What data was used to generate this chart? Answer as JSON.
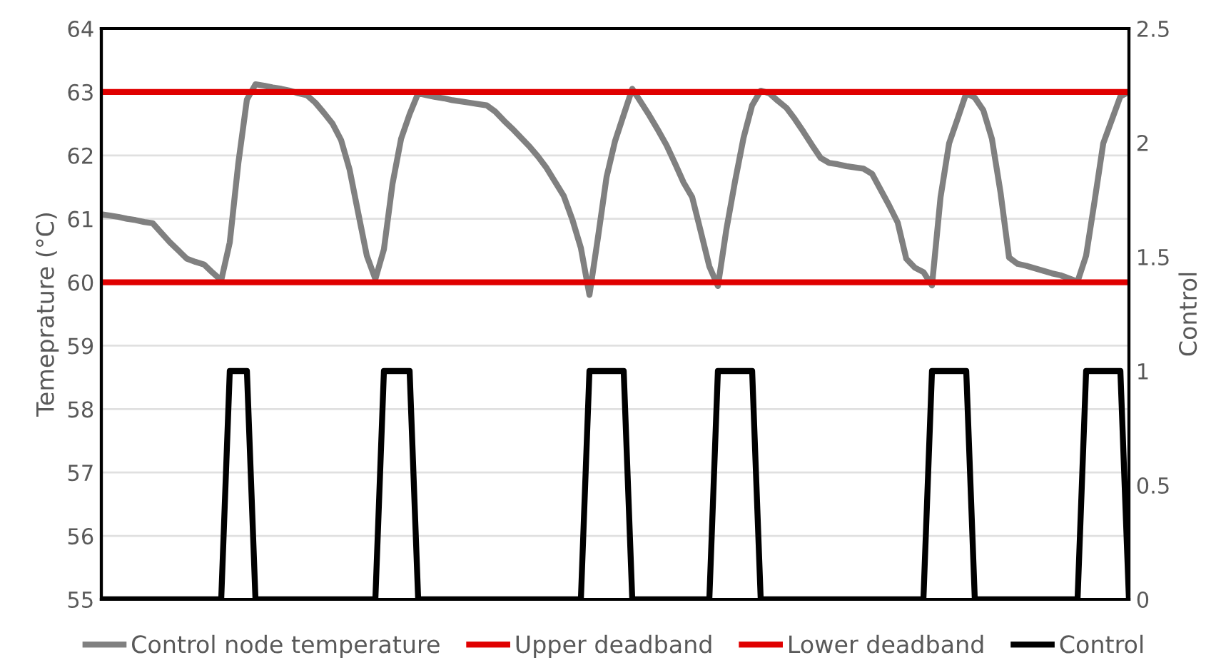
{
  "chart_data": {
    "type": "line",
    "ylabel": "Temeprature (°C)",
    "y2label": "Control",
    "categories": [
      null,
      null,
      null,
      null,
      null,
      null,
      null,
      null,
      null,
      null,
      null,
      null,
      null,
      null,
      null,
      null,
      null,
      null,
      null,
      null,
      null,
      null,
      null,
      null,
      null,
      null,
      null,
      null,
      null,
      null,
      null,
      null,
      null,
      null,
      null,
      null,
      null,
      null,
      null,
      null,
      null,
      null,
      null,
      null,
      null,
      null,
      null,
      null,
      null,
      null,
      null,
      null,
      null,
      null,
      null,
      null,
      null,
      null,
      null,
      null,
      null,
      null,
      null,
      null,
      null,
      null,
      null,
      null,
      null,
      null,
      null,
      null,
      null,
      null,
      null,
      null,
      null,
      null,
      null,
      null,
      null,
      null,
      null,
      null,
      null,
      null,
      null,
      null,
      null,
      null,
      null,
      null,
      null,
      null,
      null,
      null,
      null,
      null,
      null,
      null,
      null,
      null,
      null,
      null,
      null,
      null,
      null,
      null,
      null,
      null,
      null,
      null,
      null,
      null,
      null,
      null,
      null,
      null,
      null,
      null,
      null
    ],
    "series": [
      {
        "name": "Control node temperature",
        "color": "#808080",
        "values": [
          61.07,
          61.05,
          61.03,
          61.0,
          60.98,
          60.95,
          60.93,
          60.78,
          60.63,
          60.5,
          60.37,
          60.32,
          60.28,
          60.15,
          60.03,
          60.63,
          61.88,
          62.88,
          63.12,
          63.1,
          63.07,
          63.05,
          63.02,
          62.98,
          62.95,
          62.83,
          62.67,
          62.5,
          62.24,
          61.77,
          61.09,
          60.42,
          60.05,
          60.52,
          61.55,
          62.26,
          62.65,
          62.98,
          62.95,
          62.92,
          62.9,
          62.87,
          62.85,
          62.83,
          62.81,
          62.79,
          62.69,
          62.55,
          62.42,
          62.28,
          62.14,
          61.98,
          61.8,
          61.58,
          61.36,
          60.99,
          60.54,
          59.8,
          60.71,
          61.66,
          62.23,
          62.64,
          63.05,
          62.84,
          62.63,
          62.4,
          62.16,
          61.87,
          61.57,
          61.34,
          60.8,
          60.25,
          59.94,
          60.84,
          61.59,
          62.28,
          62.79,
          63.02,
          62.98,
          62.86,
          62.75,
          62.57,
          62.37,
          62.16,
          61.96,
          61.88,
          61.86,
          61.83,
          61.81,
          61.79,
          61.71,
          61.46,
          61.21,
          60.94,
          60.37,
          60.23,
          60.16,
          59.95,
          61.34,
          62.19,
          62.58,
          62.98,
          62.91,
          62.71,
          62.26,
          61.42,
          60.39,
          60.29,
          60.26,
          60.22,
          60.18,
          60.14,
          60.11,
          60.06,
          60.01,
          60.42,
          61.29,
          62.19,
          62.56,
          62.93,
          63.0
        ]
      },
      {
        "name": "Upper deadband",
        "color": "#e00000",
        "values": [
          63,
          63,
          63,
          63,
          63,
          63,
          63,
          63,
          63,
          63,
          63,
          63,
          63,
          63,
          63,
          63,
          63,
          63,
          63,
          63,
          63,
          63,
          63,
          63,
          63,
          63,
          63,
          63,
          63,
          63,
          63,
          63,
          63,
          63,
          63,
          63,
          63,
          63,
          63,
          63,
          63,
          63,
          63,
          63,
          63,
          63,
          63,
          63,
          63,
          63,
          63,
          63,
          63,
          63,
          63,
          63,
          63,
          63,
          63,
          63,
          63,
          63,
          63,
          63,
          63,
          63,
          63,
          63,
          63,
          63,
          63,
          63,
          63,
          63,
          63,
          63,
          63,
          63,
          63,
          63,
          63,
          63,
          63,
          63,
          63,
          63,
          63,
          63,
          63,
          63,
          63,
          63,
          63,
          63,
          63,
          63,
          63,
          63,
          63,
          63,
          63,
          63,
          63,
          63,
          63,
          63,
          63,
          63,
          63,
          63,
          63,
          63,
          63,
          63,
          63,
          63,
          63,
          63,
          63,
          63,
          63
        ]
      },
      {
        "name": "Lower deadband",
        "color": "#e00000",
        "values": [
          60,
          60,
          60,
          60,
          60,
          60,
          60,
          60,
          60,
          60,
          60,
          60,
          60,
          60,
          60,
          60,
          60,
          60,
          60,
          60,
          60,
          60,
          60,
          60,
          60,
          60,
          60,
          60,
          60,
          60,
          60,
          60,
          60,
          60,
          60,
          60,
          60,
          60,
          60,
          60,
          60,
          60,
          60,
          60,
          60,
          60,
          60,
          60,
          60,
          60,
          60,
          60,
          60,
          60,
          60,
          60,
          60,
          60,
          60,
          60,
          60,
          60,
          60,
          60,
          60,
          60,
          60,
          60,
          60,
          60,
          60,
          60,
          60,
          60,
          60,
          60,
          60,
          60,
          60,
          60,
          60,
          60,
          60,
          60,
          60,
          60,
          60,
          60,
          60,
          60,
          60,
          60,
          60,
          60,
          60,
          60,
          60,
          60,
          60,
          60,
          60,
          60,
          60,
          60,
          60,
          60,
          60,
          60,
          60,
          60,
          60,
          60,
          60,
          60,
          60,
          60,
          60,
          60,
          60,
          60,
          60
        ]
      },
      {
        "name": "Control",
        "color": "#000000",
        "axis": "y2",
        "values": [
          0,
          0,
          0,
          0,
          0,
          0,
          0,
          0,
          0,
          0,
          0,
          0,
          0,
          0,
          0,
          1,
          1,
          1,
          0,
          0,
          0,
          0,
          0,
          0,
          0,
          0,
          0,
          0,
          0,
          0,
          0,
          0,
          0,
          1,
          1,
          1,
          1,
          0,
          0,
          0,
          0,
          0,
          0,
          0,
          0,
          0,
          0,
          0,
          0,
          0,
          0,
          0,
          0,
          0,
          0,
          0,
          0,
          1,
          1,
          1,
          1,
          1,
          0,
          0,
          0,
          0,
          0,
          0,
          0,
          0,
          0,
          0,
          1,
          1,
          1,
          1,
          1,
          0,
          0,
          0,
          0,
          0,
          0,
          0,
          0,
          0,
          0,
          0,
          0,
          0,
          0,
          0,
          0,
          0,
          0,
          0,
          0,
          1,
          1,
          1,
          1,
          1,
          0,
          0,
          0,
          0,
          0,
          0,
          0,
          0,
          0,
          0,
          0,
          0,
          0,
          1,
          1,
          1,
          1,
          1,
          0
        ]
      }
    ],
    "ylim": [
      55,
      64
    ],
    "yticks": [
      55,
      56,
      57,
      58,
      59,
      60,
      61,
      62,
      63,
      64
    ],
    "y2lim": [
      0,
      2.5
    ],
    "y2ticks": [
      0,
      0.5,
      1,
      1.5,
      2,
      2.5
    ],
    "grid": "y",
    "legend": "bottom",
    "marker": "none",
    "line_style": "solid"
  }
}
